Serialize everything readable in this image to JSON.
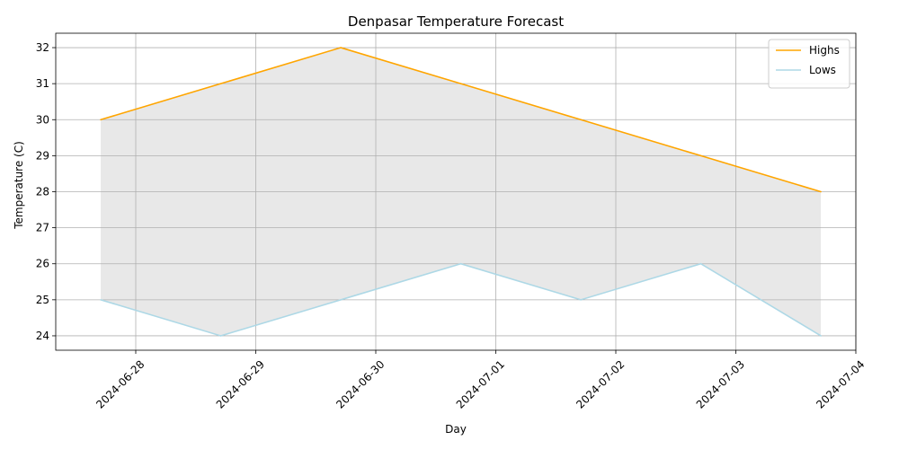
{
  "chart_data": {
    "type": "line",
    "title": "Denpasar Temperature Forecast",
    "xlabel": "Day",
    "ylabel": "Temperature (C)",
    "x": [
      "2024-06-27T17:00",
      "2024-06-28T17:00",
      "2024-06-29T17:00",
      "2024-06-30T17:00",
      "2024-07-01T17:00",
      "2024-07-02T17:00",
      "2024-07-03T17:00"
    ],
    "x_ticks": [
      "2024-06-28",
      "2024-06-29",
      "2024-06-30",
      "2024-07-01",
      "2024-07-02",
      "2024-07-03",
      "2024-07-04"
    ],
    "y_ticks": [
      24,
      25,
      26,
      27,
      28,
      29,
      30,
      31,
      32
    ],
    "xlim": [
      "2024-06-27T08:00",
      "2024-07-04"
    ],
    "ylim": [
      23.6,
      32.4
    ],
    "series": [
      {
        "name": "Highs",
        "values": [
          30,
          31,
          32,
          31,
          30,
          29,
          28
        ],
        "color": "#ffa500"
      },
      {
        "name": "Lows",
        "values": [
          25,
          24,
          25,
          26,
          25,
          26,
          24
        ],
        "color": "#add8e6"
      }
    ],
    "fill_between": {
      "color": "#e8e8e8"
    },
    "grid": true,
    "legend": "top-right"
  }
}
